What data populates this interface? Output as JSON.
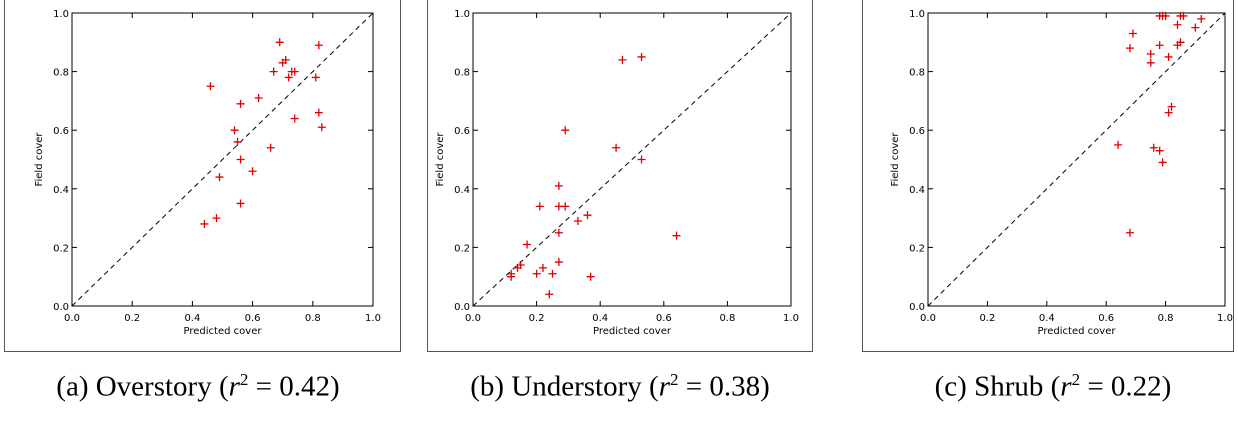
{
  "chart_data": [
    {
      "type": "scatter",
      "xlabel": "Predicted cover",
      "ylabel": "Field cover",
      "xlim": [
        0.0,
        1.0
      ],
      "ylim": [
        0.0,
        1.0
      ],
      "xticks": [
        "0.0",
        "0.2",
        "0.4",
        "0.6",
        "0.8",
        "1.0"
      ],
      "yticks": [
        "0.0",
        "0.2",
        "0.4",
        "0.6",
        "0.8",
        "1.0"
      ],
      "reference_line": "1:1 dashed",
      "marker": "+",
      "marker_color": "#e00000",
      "caption": {
        "prefix": "(a) Overstory (",
        "r": "r",
        "sup": "2",
        "suffix": " = 0.42)"
      },
      "points": [
        {
          "x": 0.44,
          "y": 0.28
        },
        {
          "x": 0.46,
          "y": 0.75
        },
        {
          "x": 0.48,
          "y": 0.3
        },
        {
          "x": 0.49,
          "y": 0.44
        },
        {
          "x": 0.54,
          "y": 0.6
        },
        {
          "x": 0.55,
          "y": 0.56
        },
        {
          "x": 0.56,
          "y": 0.69
        },
        {
          "x": 0.56,
          "y": 0.5
        },
        {
          "x": 0.56,
          "y": 0.35
        },
        {
          "x": 0.6,
          "y": 0.46
        },
        {
          "x": 0.62,
          "y": 0.71
        },
        {
          "x": 0.66,
          "y": 0.54
        },
        {
          "x": 0.67,
          "y": 0.8
        },
        {
          "x": 0.69,
          "y": 0.9
        },
        {
          "x": 0.7,
          "y": 0.83
        },
        {
          "x": 0.71,
          "y": 0.84
        },
        {
          "x": 0.72,
          "y": 0.78
        },
        {
          "x": 0.73,
          "y": 0.8
        },
        {
          "x": 0.74,
          "y": 0.8
        },
        {
          "x": 0.74,
          "y": 0.64
        },
        {
          "x": 0.81,
          "y": 0.78
        },
        {
          "x": 0.82,
          "y": 0.89
        },
        {
          "x": 0.82,
          "y": 0.66
        },
        {
          "x": 0.83,
          "y": 0.61
        }
      ]
    },
    {
      "type": "scatter",
      "xlabel": "Predicted cover",
      "ylabel": "Field cover",
      "xlim": [
        0.0,
        1.0
      ],
      "ylim": [
        0.0,
        1.0
      ],
      "xticks": [
        "0.0",
        "0.2",
        "0.4",
        "0.6",
        "0.8",
        "1.0"
      ],
      "yticks": [
        "0.0",
        "0.2",
        "0.4",
        "0.6",
        "0.8",
        "1.0"
      ],
      "reference_line": "1:1 dashed",
      "marker": "+",
      "marker_color": "#e00000",
      "caption": {
        "prefix": "(b) Understory (",
        "r": "r",
        "sup": "2",
        "suffix": " = 0.38)"
      },
      "points": [
        {
          "x": 0.12,
          "y": 0.1
        },
        {
          "x": 0.12,
          "y": 0.11
        },
        {
          "x": 0.14,
          "y": 0.13
        },
        {
          "x": 0.15,
          "y": 0.14
        },
        {
          "x": 0.17,
          "y": 0.21
        },
        {
          "x": 0.2,
          "y": 0.11
        },
        {
          "x": 0.21,
          "y": 0.34
        },
        {
          "x": 0.22,
          "y": 0.13
        },
        {
          "x": 0.24,
          "y": 0.04
        },
        {
          "x": 0.25,
          "y": 0.11
        },
        {
          "x": 0.27,
          "y": 0.41
        },
        {
          "x": 0.27,
          "y": 0.34
        },
        {
          "x": 0.27,
          "y": 0.25
        },
        {
          "x": 0.27,
          "y": 0.15
        },
        {
          "x": 0.29,
          "y": 0.34
        },
        {
          "x": 0.29,
          "y": 0.6
        },
        {
          "x": 0.33,
          "y": 0.29
        },
        {
          "x": 0.36,
          "y": 0.31
        },
        {
          "x": 0.37,
          "y": 0.1
        },
        {
          "x": 0.45,
          "y": 0.54
        },
        {
          "x": 0.47,
          "y": 0.84
        },
        {
          "x": 0.53,
          "y": 0.85
        },
        {
          "x": 0.53,
          "y": 0.5
        },
        {
          "x": 0.64,
          "y": 0.24
        }
      ]
    },
    {
      "type": "scatter",
      "xlabel": "Predicted cover",
      "ylabel": "Field cover",
      "xlim": [
        0.0,
        1.0
      ],
      "ylim": [
        0.0,
        1.0
      ],
      "xticks": [
        "0.0",
        "0.2",
        "0.4",
        "0.6",
        "0.8",
        "1.0"
      ],
      "yticks": [
        "0.0",
        "0.2",
        "0.4",
        "0.6",
        "0.8",
        "1.0"
      ],
      "reference_line": "1:1 dashed",
      "marker": "+",
      "marker_color": "#e00000",
      "caption": {
        "prefix": "(c) Shrub (",
        "r": "r",
        "sup": "2",
        "suffix": " = 0.22)"
      },
      "points": [
        {
          "x": 0.64,
          "y": 0.55
        },
        {
          "x": 0.68,
          "y": 0.25
        },
        {
          "x": 0.68,
          "y": 0.88
        },
        {
          "x": 0.69,
          "y": 0.93
        },
        {
          "x": 0.75,
          "y": 0.86
        },
        {
          "x": 0.75,
          "y": 0.83
        },
        {
          "x": 0.76,
          "y": 0.54
        },
        {
          "x": 0.78,
          "y": 0.53
        },
        {
          "x": 0.78,
          "y": 0.89
        },
        {
          "x": 0.78,
          "y": 0.99
        },
        {
          "x": 0.79,
          "y": 0.49
        },
        {
          "x": 0.79,
          "y": 0.99
        },
        {
          "x": 0.8,
          "y": 0.99
        },
        {
          "x": 0.81,
          "y": 0.85
        },
        {
          "x": 0.81,
          "y": 0.66
        },
        {
          "x": 0.82,
          "y": 0.68
        },
        {
          "x": 0.84,
          "y": 0.96
        },
        {
          "x": 0.84,
          "y": 0.89
        },
        {
          "x": 0.85,
          "y": 0.9
        },
        {
          "x": 0.85,
          "y": 0.99
        },
        {
          "x": 0.86,
          "y": 0.99
        },
        {
          "x": 0.9,
          "y": 0.95
        },
        {
          "x": 0.92,
          "y": 0.98
        }
      ]
    }
  ]
}
